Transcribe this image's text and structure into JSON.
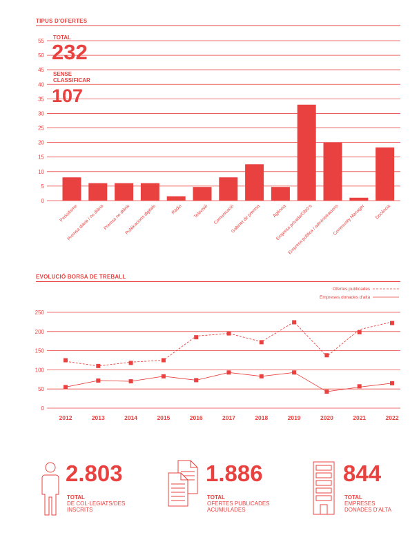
{
  "chart_data": [
    {
      "type": "bar",
      "title": "TIPUS D'OFERTES",
      "ylim": [
        0,
        55
      ],
      "yticks": [
        0,
        5,
        10,
        15,
        20,
        25,
        30,
        35,
        40,
        45,
        50,
        55
      ],
      "grid": true,
      "color": "#e8413f",
      "categories": [
        "Periodisme",
        "Premsa diària / no diària",
        "Premsa no diària",
        "Publicacions digitals",
        "Ràdio",
        "Televisió",
        "Comunicació",
        "Gabinet de premsa",
        "Agència",
        "Empresa privada/ONG's",
        "Empresa pública / administracions",
        "Community Manager",
        "Docència"
      ],
      "values": [
        8,
        6,
        6,
        6,
        1.5,
        4.7,
        8,
        12.5,
        4.7,
        33,
        20,
        1,
        18.3
      ]
    },
    {
      "type": "line",
      "title": "EVOLUCIÓ BORSA DE TREBALL",
      "ylim": [
        0,
        250
      ],
      "yticks": [
        0,
        50,
        100,
        150,
        200,
        250
      ],
      "grid": true,
      "legend_position": "top-right",
      "x": [
        "2012",
        "2013",
        "2014",
        "2015",
        "2016",
        "2017",
        "2018",
        "2019",
        "2020",
        "2021",
        "2022"
      ],
      "series": [
        {
          "name": "Ofertes publicades",
          "style": "dashed",
          "line": [
            122,
            110,
            120,
            125,
            188,
            195,
            173,
            225,
            135,
            205,
            225
          ],
          "markers": [
            125,
            110,
            118,
            125,
            185,
            195,
            172,
            224,
            138,
            198,
            222
          ]
        },
        {
          "name": "Empreses donades d'alta",
          "style": "solid",
          "line": [
            55,
            72,
            70,
            83,
            73,
            93,
            83,
            93,
            43,
            55,
            65
          ],
          "markers": [
            55,
            72,
            70,
            83,
            73,
            93,
            83,
            93,
            43,
            57,
            65
          ]
        }
      ]
    }
  ],
  "tipus": {
    "title": "TIPUS D'OFERTES",
    "total_label": "TOTAL",
    "total_value": "232",
    "sense_label_1": "SENSE",
    "sense_label_2": "CLASSIFICAR",
    "sense_value": "107"
  },
  "evolucio": {
    "title": "EVOLUCIÓ BORSA DE TREBALL"
  },
  "stats": [
    {
      "value": "2.803",
      "label_1": "TOTAL",
      "label_2": "DE COL·LEGIATS/DES",
      "label_3": "INSCRITS",
      "icon": "person-icon"
    },
    {
      "value": "1.886",
      "label_1": "TOTAL",
      "label_2": "OFERTES PUBLICADES",
      "label_3": "ACUMULADES",
      "icon": "documents-icon"
    },
    {
      "value": "844",
      "label_1": "TOTAL",
      "label_2": "EMPRESES",
      "label_3": "DONADES D'ALTA",
      "icon": "building-icon"
    }
  ]
}
